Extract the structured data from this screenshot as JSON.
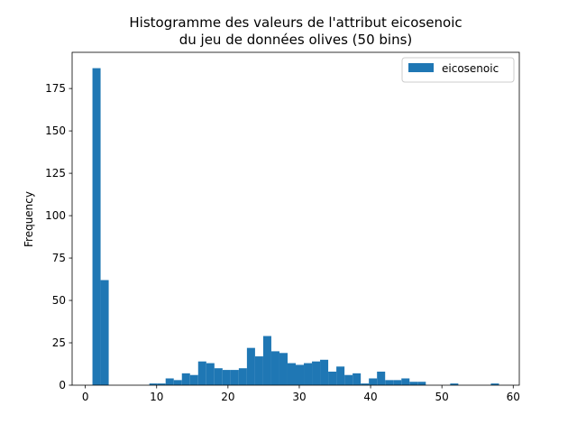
{
  "chart_data": {
    "type": "bar",
    "title_lines": [
      "Histogramme des valeurs de l'attribut eicosenoic",
      "du jeu de données olives (50 bins)"
    ],
    "xlabel": "",
    "ylabel": "Frequency",
    "xlim": [
      -1.85,
      60.85
    ],
    "ylim": [
      0,
      196.35
    ],
    "xticks": [
      0,
      10,
      20,
      30,
      40,
      50,
      60
    ],
    "yticks": [
      0,
      25,
      50,
      75,
      100,
      125,
      150,
      175
    ],
    "grid": false,
    "legend_position": "top-right",
    "bin_start": 1,
    "bin_width": 1.14,
    "series": [
      {
        "name": "eicosenoic",
        "color": "#1f77b4",
        "values": [
          187,
          62,
          0,
          0,
          0,
          0,
          0,
          1,
          1,
          4,
          3,
          7,
          6,
          14,
          13,
          10,
          9,
          9,
          10,
          22,
          17,
          29,
          20,
          19,
          13,
          12,
          13,
          14,
          15,
          8,
          11,
          6,
          7,
          1,
          4,
          8,
          3,
          3,
          4,
          2,
          2,
          0,
          0,
          0,
          1,
          0,
          0,
          0,
          0,
          1
        ]
      }
    ]
  }
}
